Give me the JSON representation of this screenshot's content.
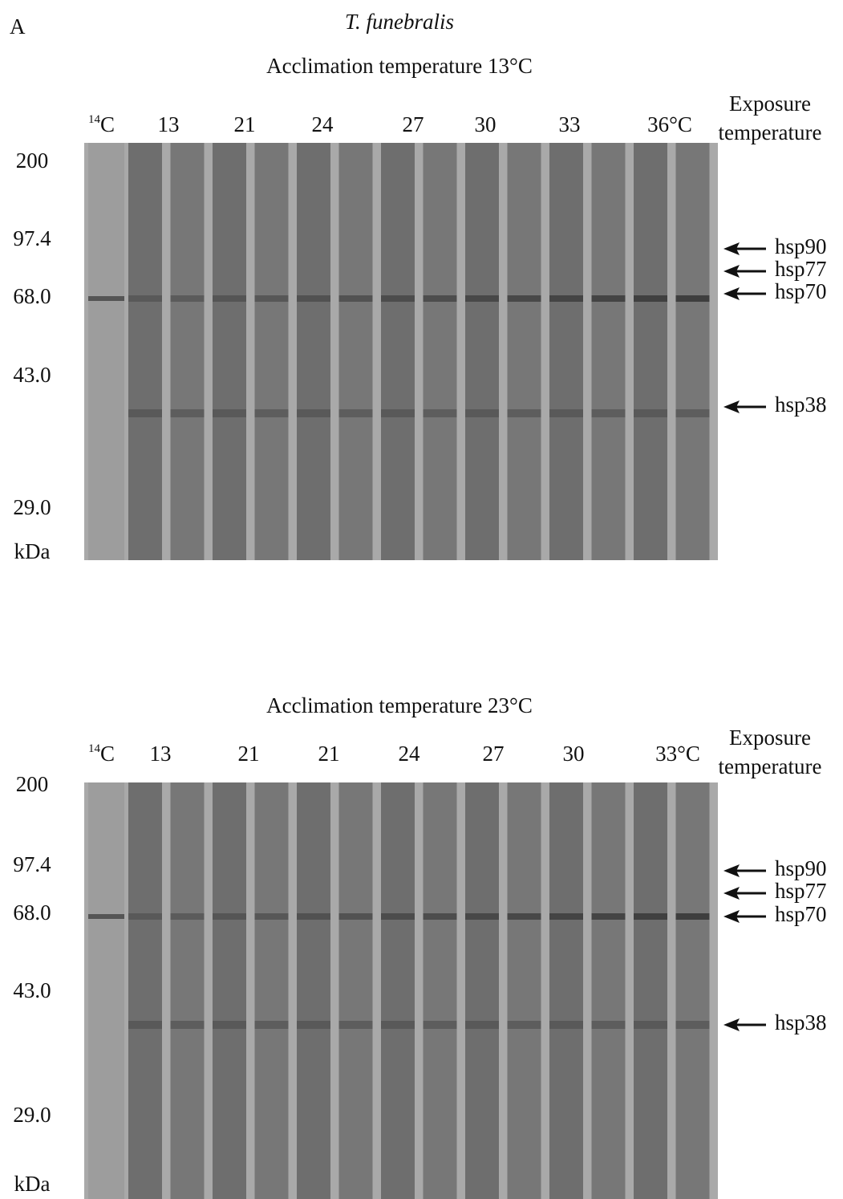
{
  "panel_label": "A",
  "species": "T. funebralis",
  "panels": [
    {
      "title": "Acclimation temperature 13°C",
      "marker_lane": {
        "superscript": "14",
        "text": "C"
      },
      "lanes": [
        "13",
        "21",
        "24",
        "27",
        "30",
        "33",
        "36°C"
      ],
      "exposure_label": [
        "Exposure",
        "temperature"
      ],
      "mw_markers": [
        "200",
        "97.4",
        "68.0",
        "43.0",
        "29.0"
      ],
      "mw_unit": "kDa",
      "proteins": [
        "hsp90",
        "hsp77",
        "hsp70",
        "hsp38"
      ]
    },
    {
      "title": "Acclimation temperature 23°C",
      "marker_lane": {
        "superscript": "14",
        "text": "C"
      },
      "lanes": [
        "13",
        "21",
        "21",
        "24",
        "27",
        "30",
        "33°C"
      ],
      "exposure_label": [
        "Exposure",
        "temperature"
      ],
      "mw_markers": [
        "200",
        "97.4",
        "68.0",
        "43.0",
        "29.0"
      ],
      "mw_unit": "kDa",
      "proteins": [
        "hsp90",
        "hsp77",
        "hsp70",
        "hsp38"
      ]
    }
  ]
}
